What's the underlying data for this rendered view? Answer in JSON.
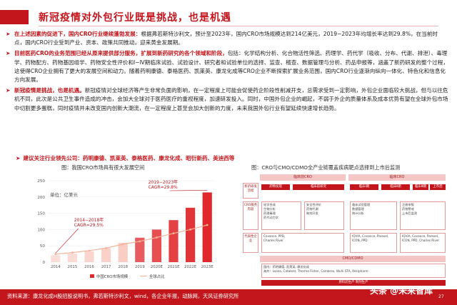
{
  "title": "新冠疫情对外包行业既是挑战，也是机遇",
  "bullets": [
    {
      "lead": "在上述因素的促进下，国内CRO行业继续蓬勃发展：",
      "body": "根据弗若斯特沙利文，预计至2023年，国内CRO市场规模达到214亿美元，2019−2023年均增长率达到29.8%，在当前时点，国内CRO行业受到产业、资本、政策共同推动，迎来黄金发展期。"
    },
    {
      "lead": "目前医药CRO的业务范围已经从原来提供部分服务，扩展到新药研究的各个领域和阶段，",
      "body": "包括：化学结构分析、化合物活性筛选、药理学、药代学（吸收、分布、代谢、排泄）、毒理学、药物配方、药物基因组学、药物安全性评价和Ⅰ−Ⅳ期临床试验、试验设计、研究者和试验单位的选择、监查、稽查、数据管理与分析、药品申报等，涵盖了新药研发的整个过程，这使得CRO企业拥有了更大的发展空间和动力。随着药明康德、泰格医药、凯莱英、康龙化成等CRO企业不断探索扩展业务范围，国内CRO行业逐渐向纵向一体化、特色化和信息化方向发展。"
    },
    {
      "lead": "新冠疫情是挑战，也是机遇。",
      "body": "新冠疫情对全球经济等产生非常负面的影响，在一定程度上可能会促使药企阶段性削减开支，总需求受到一定影响，外包企业面临较大挑战，但与以往危机不同，此次是公共卫生事件造成的冲击，会加大全球对于医药医疗的重视程度，加速研发投入。同时，中国外包企业的崛起，不弱于外企的质量体系及成本优势有望在全球外包市场中切割更多蛋糕，同时疫情并未改变国内创新大潮流，在一定程度上甚至会加大创新的力度，未来我国外包行业有望延续快速增长趋势。"
    }
  ],
  "sub_lead": "建议关注行业领先公司：药明康德、凯莱英、泰格医药、康龙化成、昭衍新药、美迪西等",
  "left_figure": {
    "title": "图：我国CRO市场具有很大发展空间"
  },
  "right_figure": {
    "title": "图：CRO与CMO/CDMO全产业链覆盖疾病靶点选择到上市后监测"
  },
  "chart_data": {
    "type": "bar",
    "title": "",
    "unit_label": "单位：亿美元",
    "categories": [
      "2014",
      "2015",
      "2016",
      "2017",
      "2018",
      "2019",
      "2020E",
      "2021E",
      "2022E",
      "2023E"
    ],
    "series": [
      {
        "name": "中国CRO市场规模",
        "values": [
          21,
          26,
          33,
          43,
          59,
          75,
          100,
          129,
          167,
          214
        ]
      },
      {
        "name": "全球占比",
        "values": [
          2.5,
          3.0,
          3.6,
          4.4,
          5.6,
          6.5,
          7.7,
          9.0,
          10.2,
          11.6
        ]
      }
    ],
    "ylim": [
      0,
      250
    ],
    "yticks": [
      0,
      50,
      100,
      150,
      200,
      250
    ],
    "annotations": [
      {
        "text_line1": "2014−2018年",
        "text_line2": "CAGR=29.5%"
      },
      {
        "text_line1": "2019−2023年",
        "text_line2": "CAGR=29.8%"
      }
    ],
    "colors": {
      "bar_light": "#f6b6a8",
      "bar_dark": "#e0272b",
      "line": "#f4b39a",
      "annotation": "#c3161c"
    },
    "legend": "bottom"
  },
  "diagram": {
    "top_band": "临床前CRO",
    "top_right_band": "临床CRO",
    "mid_band": "CMO/CDMO",
    "bottom_band": "原料药生产  制剂生产",
    "side_labels": [
      "新药研发流程",
      "CRO服务内容",
      "代表性企业"
    ],
    "stages": [
      "药物发现",
      "临床前研究",
      "临床Ⅰ期",
      "临床Ⅱ期",
      "临床Ⅲ期",
      "上市后"
    ],
    "service_boxes": [
      "化学合成\n生物分析\n药理毒理\n药代动力学",
      "安全性评价\n药物代谢\n制剂开发",
      "临床试验管理\n数据管理\n统计分析",
      "注册申报\n药物警戒\n上市后监测"
    ],
    "company_boxes": [
      "Covance, PPD,\nCharles River",
      "IQVIA, Covance, Parexel,\nICON, PPD",
      "IQVIA, Covance, Parexel,\nICON, PPD, Charles River"
    ],
    "cmo_box": "国内：药明康德, 凯莱英, 康龙化成\n海外：Lonza, Catalent, Thermo Fisher, Cambrex, WuXi STA, Recipharm"
  },
  "source": "资料来源：康龙化成H股招股说明书，弗若斯特沙利文，wind，各企业年报，动脉网，天风证券研究所",
  "watermark": "头条 @未来智库",
  "page_number": "27"
}
